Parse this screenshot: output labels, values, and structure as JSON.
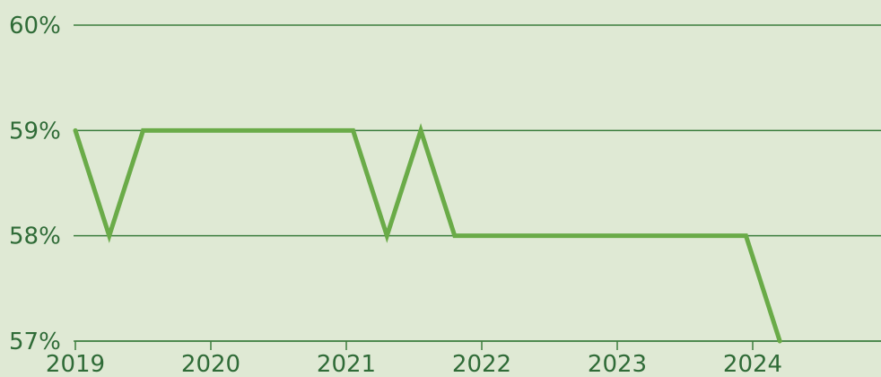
{
  "chart_data": {
    "type": "line",
    "title": "",
    "xlabel": "",
    "ylabel": "",
    "y_tick_labels": [
      "57%",
      "58%",
      "59%",
      "60%"
    ],
    "x_tick_labels": [
      "2019",
      "2020",
      "2021",
      "2022",
      "2023",
      "2024"
    ],
    "ylim": [
      57,
      60
    ],
    "xlim": [
      2019,
      2024
    ],
    "grid": true,
    "series": [
      {
        "x": [
          2019.0,
          2019.25,
          2019.5,
          2021.05,
          2021.3,
          2021.55,
          2021.8,
          2023.95,
          2024.2
        ],
        "values": [
          59,
          58,
          59,
          59,
          58,
          59,
          58,
          58,
          57
        ]
      }
    ],
    "colors": {
      "background": "#dfe9d4",
      "line": "#6aab48",
      "grid": "#3b7d3d",
      "text": "#2f6b37"
    }
  }
}
